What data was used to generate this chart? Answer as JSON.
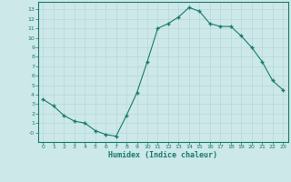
{
  "x": [
    0,
    1,
    2,
    3,
    4,
    5,
    6,
    7,
    8,
    9,
    10,
    11,
    12,
    13,
    14,
    15,
    16,
    17,
    18,
    19,
    20,
    21,
    22,
    23
  ],
  "y": [
    3.5,
    2.8,
    1.8,
    1.2,
    1.0,
    0.2,
    -0.2,
    -0.4,
    1.8,
    4.2,
    7.5,
    11.0,
    11.5,
    12.2,
    13.2,
    12.8,
    11.5,
    11.2,
    11.2,
    10.2,
    9.0,
    7.5,
    5.5,
    4.5
  ],
  "line_color": "#1a7a6e",
  "marker_color": "#1a7a6e",
  "bg_color": "#cce8e8",
  "grid_color": "#b8d8d8",
  "xlabel": "Humidex (Indice chaleur)",
  "xlabel_color": "#1a7a6e",
  "xlim": [
    -0.5,
    23.5
  ],
  "ylim": [
    -1.0,
    13.8
  ],
  "yticks": [
    0,
    1,
    2,
    3,
    4,
    5,
    6,
    7,
    8,
    9,
    10,
    11,
    12,
    13
  ],
  "ytick_labels": [
    "-0",
    "1",
    "2",
    "3",
    "4",
    "5",
    "6",
    "7",
    "8",
    "9",
    "10",
    "11",
    "12",
    "13"
  ],
  "xticks": [
    0,
    1,
    2,
    3,
    4,
    5,
    6,
    7,
    8,
    9,
    10,
    11,
    12,
    13,
    14,
    15,
    16,
    17,
    18,
    19,
    20,
    21,
    22,
    23
  ]
}
